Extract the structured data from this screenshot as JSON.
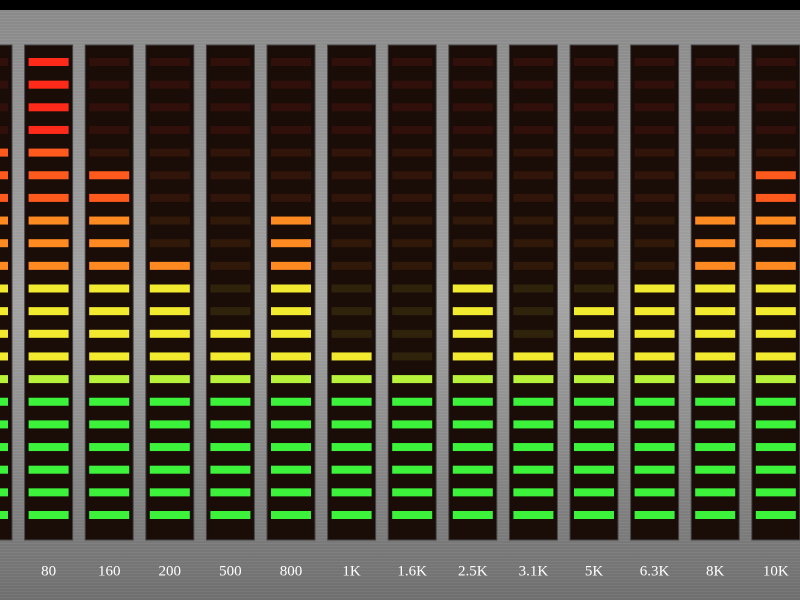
{
  "chart_data": {
    "type": "bar",
    "categories": [
      null,
      "80",
      "160",
      "200",
      "500",
      "800",
      "1K",
      "1.6K",
      "2.5K",
      "3.1K",
      "5K",
      "6.3K",
      "8K",
      "10K"
    ],
    "values": [
      17,
      21,
      16,
      12,
      9,
      14,
      8,
      7,
      11,
      8,
      10,
      11,
      14,
      16
    ],
    "ylim": [
      0,
      21
    ]
  }
}
